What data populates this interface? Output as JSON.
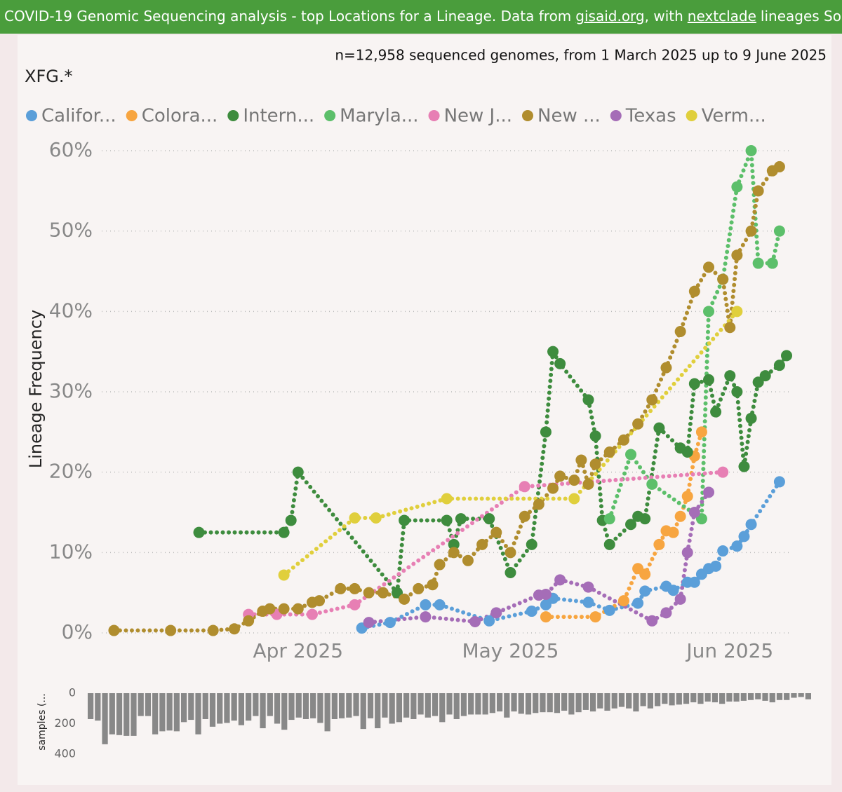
{
  "header": {
    "text_1": "COVID-19 Genomic Sequencing analysis - top Locations for a Lineage. Data from",
    "link_1": "gisaid.org",
    "text_2": ", with",
    "link_2": "nextclade",
    "text_3": "lineages Source f"
  },
  "chart_data": [
    {
      "type": "line",
      "title": "XFG.*",
      "subtitle": "n=12,958 sequenced genomes, from 1 March 2025 up to 9 June 2025",
      "y_label": "Lineage Frequency",
      "xlim": [
        "2025-03-01",
        "2025-06-09"
      ],
      "xticks": [
        {
          "value": "2025-04-01",
          "label": "Apr 2025"
        },
        {
          "value": "2025-05-01",
          "label": "May 2025"
        },
        {
          "value": "2025-06-01",
          "label": "Jun 2025"
        }
      ],
      "ylim": [
        0,
        60
      ],
      "yticks": [
        {
          "value": 0,
          "label": "0%"
        },
        {
          "value": 10,
          "label": "10%"
        },
        {
          "value": 20,
          "label": "20%"
        },
        {
          "value": 30,
          "label": "30%"
        },
        {
          "value": 40,
          "label": "40%"
        },
        {
          "value": 50,
          "label": "50%"
        },
        {
          "value": 60,
          "label": "60%"
        }
      ],
      "grid": true,
      "series": [
        {
          "name": "Califor...",
          "color": "#5b9fd9",
          "x": [
            "2025-04-10",
            "2025-04-14",
            "2025-04-19",
            "2025-04-21",
            "2025-04-28",
            "2025-05-04",
            "2025-05-06",
            "2025-05-07",
            "2025-05-12",
            "2025-05-15",
            "2025-05-19",
            "2025-05-20",
            "2025-05-23",
            "2025-05-24",
            "2025-05-26",
            "2025-05-27",
            "2025-05-28",
            "2025-05-29",
            "2025-05-30",
            "2025-05-31",
            "2025-06-02",
            "2025-06-03",
            "2025-06-04",
            "2025-06-08"
          ],
          "values": [
            0.6,
            1.3,
            3.5,
            3.5,
            1.5,
            2.7,
            3.5,
            4.3,
            3.8,
            2.8,
            3.7,
            5.2,
            5.8,
            5.3,
            6.3,
            6.3,
            7.3,
            8,
            8.3,
            10.2,
            10.8,
            12,
            13.5,
            18.8
          ]
        },
        {
          "name": "Colora...",
          "color": "#f7a540",
          "x": [
            "2025-05-06",
            "2025-05-13",
            "2025-05-17",
            "2025-05-19",
            "2025-05-20",
            "2025-05-22",
            "2025-05-23",
            "2025-05-24",
            "2025-05-25",
            "2025-05-26",
            "2025-05-27",
            "2025-05-28"
          ],
          "values": [
            2,
            2,
            4,
            8,
            7.3,
            11,
            12.7,
            12.5,
            14.5,
            17,
            22,
            25
          ]
        },
        {
          "name": "Intern...",
          "color": "#3e8c3e",
          "x": [
            "2025-03-18",
            "2025-03-30",
            "2025-03-31",
            "2025-04-01",
            "2025-04-15",
            "2025-04-16",
            "2025-04-22",
            "2025-04-23",
            "2025-04-24",
            "2025-04-28",
            "2025-05-01",
            "2025-05-04",
            "2025-05-06",
            "2025-05-07",
            "2025-05-08",
            "2025-05-12",
            "2025-05-13",
            "2025-05-14",
            "2025-05-15",
            "2025-05-18",
            "2025-05-19",
            "2025-05-20",
            "2025-05-22",
            "2025-05-25",
            "2025-05-26",
            "2025-05-27",
            "2025-05-29",
            "2025-05-30",
            "2025-06-01",
            "2025-06-02",
            "2025-06-03",
            "2025-06-04",
            "2025-06-05",
            "2025-06-06",
            "2025-06-08",
            "2025-06-09"
          ],
          "values": [
            12.5,
            12.5,
            14,
            20,
            5,
            14,
            14,
            11,
            14.2,
            14.2,
            7.5,
            11,
            25,
            35,
            33.5,
            29,
            24.5,
            14,
            11,
            13.5,
            14.5,
            14.2,
            25.5,
            23,
            22.5,
            31,
            31.5,
            27.5,
            32,
            30,
            20.7,
            26.7,
            31.2,
            32,
            33.3,
            34.5
          ]
        },
        {
          "name": "Maryla...",
          "color": "#5cbf6a",
          "x": [
            "2025-05-15",
            "2025-05-18",
            "2025-05-21",
            "2025-05-28",
            "2025-05-29",
            "2025-05-31",
            "2025-06-02",
            "2025-06-04",
            "2025-06-05",
            "2025-06-07",
            "2025-06-08"
          ],
          "values": [
            14.2,
            22.2,
            18.5,
            14.2,
            40,
            44,
            55.5,
            60,
            46,
            46,
            50
          ]
        },
        {
          "name": "New J...",
          "color": "#e77fb4",
          "x": [
            "2025-03-25",
            "2025-03-29",
            "2025-04-03",
            "2025-04-09",
            "2025-05-03",
            "2025-05-31"
          ],
          "values": [
            2.3,
            2.3,
            2.3,
            3.5,
            18.2,
            20
          ]
        },
        {
          "name": "New ...",
          "color": "#b08d2e",
          "x": [
            "2025-03-06",
            "2025-03-14",
            "2025-03-20",
            "2025-03-23",
            "2025-03-25",
            "2025-03-27",
            "2025-03-28",
            "2025-03-30",
            "2025-04-01",
            "2025-04-03",
            "2025-04-04",
            "2025-04-07",
            "2025-04-09",
            "2025-04-11",
            "2025-04-13",
            "2025-04-16",
            "2025-04-18",
            "2025-04-20",
            "2025-04-21",
            "2025-04-23",
            "2025-04-25",
            "2025-04-27",
            "2025-04-29",
            "2025-05-01",
            "2025-05-03",
            "2025-05-05",
            "2025-05-07",
            "2025-05-08",
            "2025-05-10",
            "2025-05-11",
            "2025-05-12",
            "2025-05-13",
            "2025-05-15",
            "2025-05-17",
            "2025-05-19",
            "2025-05-21",
            "2025-05-23",
            "2025-05-25",
            "2025-05-27",
            "2025-05-29",
            "2025-05-31",
            "2025-06-01",
            "2025-06-02",
            "2025-06-04",
            "2025-06-05",
            "2025-06-07",
            "2025-06-08"
          ],
          "values": [
            0.3,
            0.3,
            0.3,
            0.5,
            1.5,
            2.7,
            3,
            3,
            3,
            3.8,
            4,
            5.5,
            5.5,
            5,
            5,
            4.2,
            5.5,
            6,
            8.5,
            10,
            9,
            11,
            12.5,
            10,
            14.5,
            16,
            18,
            19.5,
            19,
            21.5,
            18.5,
            21,
            22.5,
            24,
            26,
            29,
            33,
            37.5,
            42.5,
            45.5,
            44,
            38,
            47,
            50,
            55,
            57.5,
            58
          ]
        },
        {
          "name": "Texas",
          "color": "#a56db7",
          "x": [
            "2025-04-11",
            "2025-04-19",
            "2025-04-26",
            "2025-04-29",
            "2025-05-05",
            "2025-05-06",
            "2025-05-08",
            "2025-05-12",
            "2025-05-21",
            "2025-05-23",
            "2025-05-25",
            "2025-05-26",
            "2025-05-27",
            "2025-05-29"
          ],
          "values": [
            1.3,
            2,
            1.4,
            2.5,
            4.7,
            4.8,
            6.6,
            5.7,
            1.5,
            2.5,
            4.2,
            10,
            15,
            17.5
          ]
        },
        {
          "name": "Verm...",
          "color": "#e0cf3c",
          "x": [
            "2025-03-30",
            "2025-04-09",
            "2025-04-12",
            "2025-04-22",
            "2025-05-10",
            "2025-06-02"
          ],
          "values": [
            7.2,
            14.3,
            14.3,
            16.7,
            16.7,
            40
          ]
        }
      ]
    },
    {
      "type": "bar",
      "y_label": "samples (...",
      "color": "#888888",
      "inverted": true,
      "ylim": [
        0,
        400
      ],
      "yticks": [
        0,
        200,
        400
      ],
      "values": [
        170,
        180,
        335,
        270,
        275,
        280,
        280,
        150,
        150,
        270,
        250,
        245,
        250,
        190,
        175,
        270,
        170,
        220,
        200,
        195,
        180,
        210,
        180,
        150,
        230,
        150,
        200,
        240,
        175,
        160,
        170,
        165,
        195,
        250,
        170,
        165,
        160,
        150,
        235,
        165,
        230,
        160,
        200,
        190,
        160,
        170,
        140,
        160,
        150,
        190,
        140,
        170,
        150,
        140,
        140,
        140,
        130,
        120,
        160,
        120,
        135,
        140,
        130,
        125,
        125,
        130,
        115,
        140,
        125,
        110,
        120,
        100,
        115,
        100,
        90,
        100,
        120,
        85,
        100,
        85,
        70,
        80,
        75,
        70,
        60,
        70,
        55,
        60,
        70,
        55,
        55,
        50,
        45,
        40,
        50,
        60,
        45,
        45,
        30,
        25,
        40
      ]
    }
  ]
}
